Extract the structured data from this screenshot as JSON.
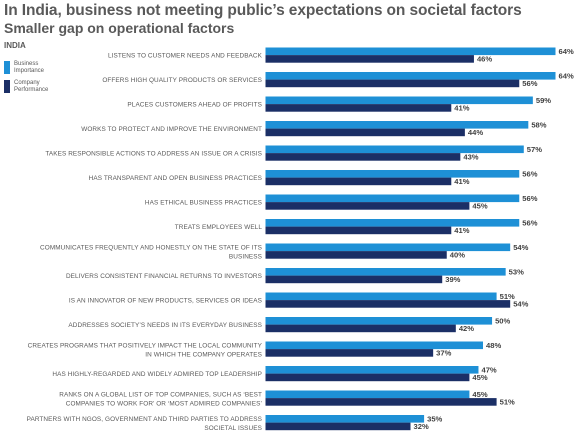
{
  "title": "In India, business not meeting public’s expectations on societal factors",
  "subtitle": "Smaller gap on operational factors",
  "region": "INDIA",
  "colors": {
    "importance": "#1e90d6",
    "performance": "#1b2f66"
  },
  "chart_data": {
    "type": "bar",
    "orientation": "horizontal",
    "title": "In India, business not meeting public’s expectations on societal factors",
    "subtitle": "Smaller gap on operational factors",
    "xlim": [
      0,
      64
    ],
    "value_suffix": "%",
    "categories": [
      [
        "LISTENS TO CUSTOMER NEEDS AND FEEDBACK"
      ],
      [
        "OFFERS HIGH QUALITY PRODUCTS OR SERVICES"
      ],
      [
        "PLACES CUSTOMERS AHEAD OF PROFITS"
      ],
      [
        "WORKS TO PROTECT AND IMPROVE THE ENVIRONMENT"
      ],
      [
        "TAKES RESPONSIBLE ACTIONS TO ADDRESS AN ISSUE OR A CRISIS"
      ],
      [
        "HAS TRANSPARENT AND OPEN BUSINESS PRACTICES"
      ],
      [
        "HAS ETHICAL BUSINESS PRACTICES"
      ],
      [
        "TREATS EMPLOYEES WELL"
      ],
      [
        "COMMUNICATES FREQUENTLY AND HONESTLY ON THE STATE OF ITS",
        "BUSINESS"
      ],
      [
        "DELIVERS CONSISTENT FINANCIAL RETURNS TO INVESTORS"
      ],
      [
        "IS AN INNOVATOR OF NEW PRODUCTS, SERVICES OR IDEAS"
      ],
      [
        "ADDRESSES SOCIETY’S NEEDS IN ITS EVERYDAY BUSINESS"
      ],
      [
        "CREATES PROGRAMS THAT POSITIVELY IMPACT THE LOCAL COMMUNITY",
        "IN WHICH THE COMPANY OPERATES"
      ],
      [
        "HAS HIGHLY-REGARDED AND WIDELY ADMIRED TOP LEADERSHIP"
      ],
      [
        "RANKS ON A GLOBAL LIST OF TOP COMPANIES, SUCH AS ‘BEST",
        "COMPANIES TO WORK FOR’ OR ‘MOST ADMIRED COMPANIES’"
      ],
      [
        "PARTNERS WITH NGOS, GOVERNMENT AND THIRD PARTIES TO ADDRESS",
        "SOCIETAL ISSUES"
      ]
    ],
    "series": [
      {
        "name": "Business Importance",
        "color": "#1e90d6",
        "values": [
          64,
          64,
          59,
          58,
          57,
          56,
          56,
          56,
          54,
          53,
          51,
          50,
          48,
          47,
          45,
          35
        ]
      },
      {
        "name": "Company Performance",
        "color": "#1b2f66",
        "values": [
          46,
          56,
          41,
          44,
          43,
          41,
          45,
          41,
          40,
          39,
          54,
          42,
          37,
          45,
          51,
          32
        ]
      }
    ],
    "legend": "top-left",
    "grid": false
  }
}
